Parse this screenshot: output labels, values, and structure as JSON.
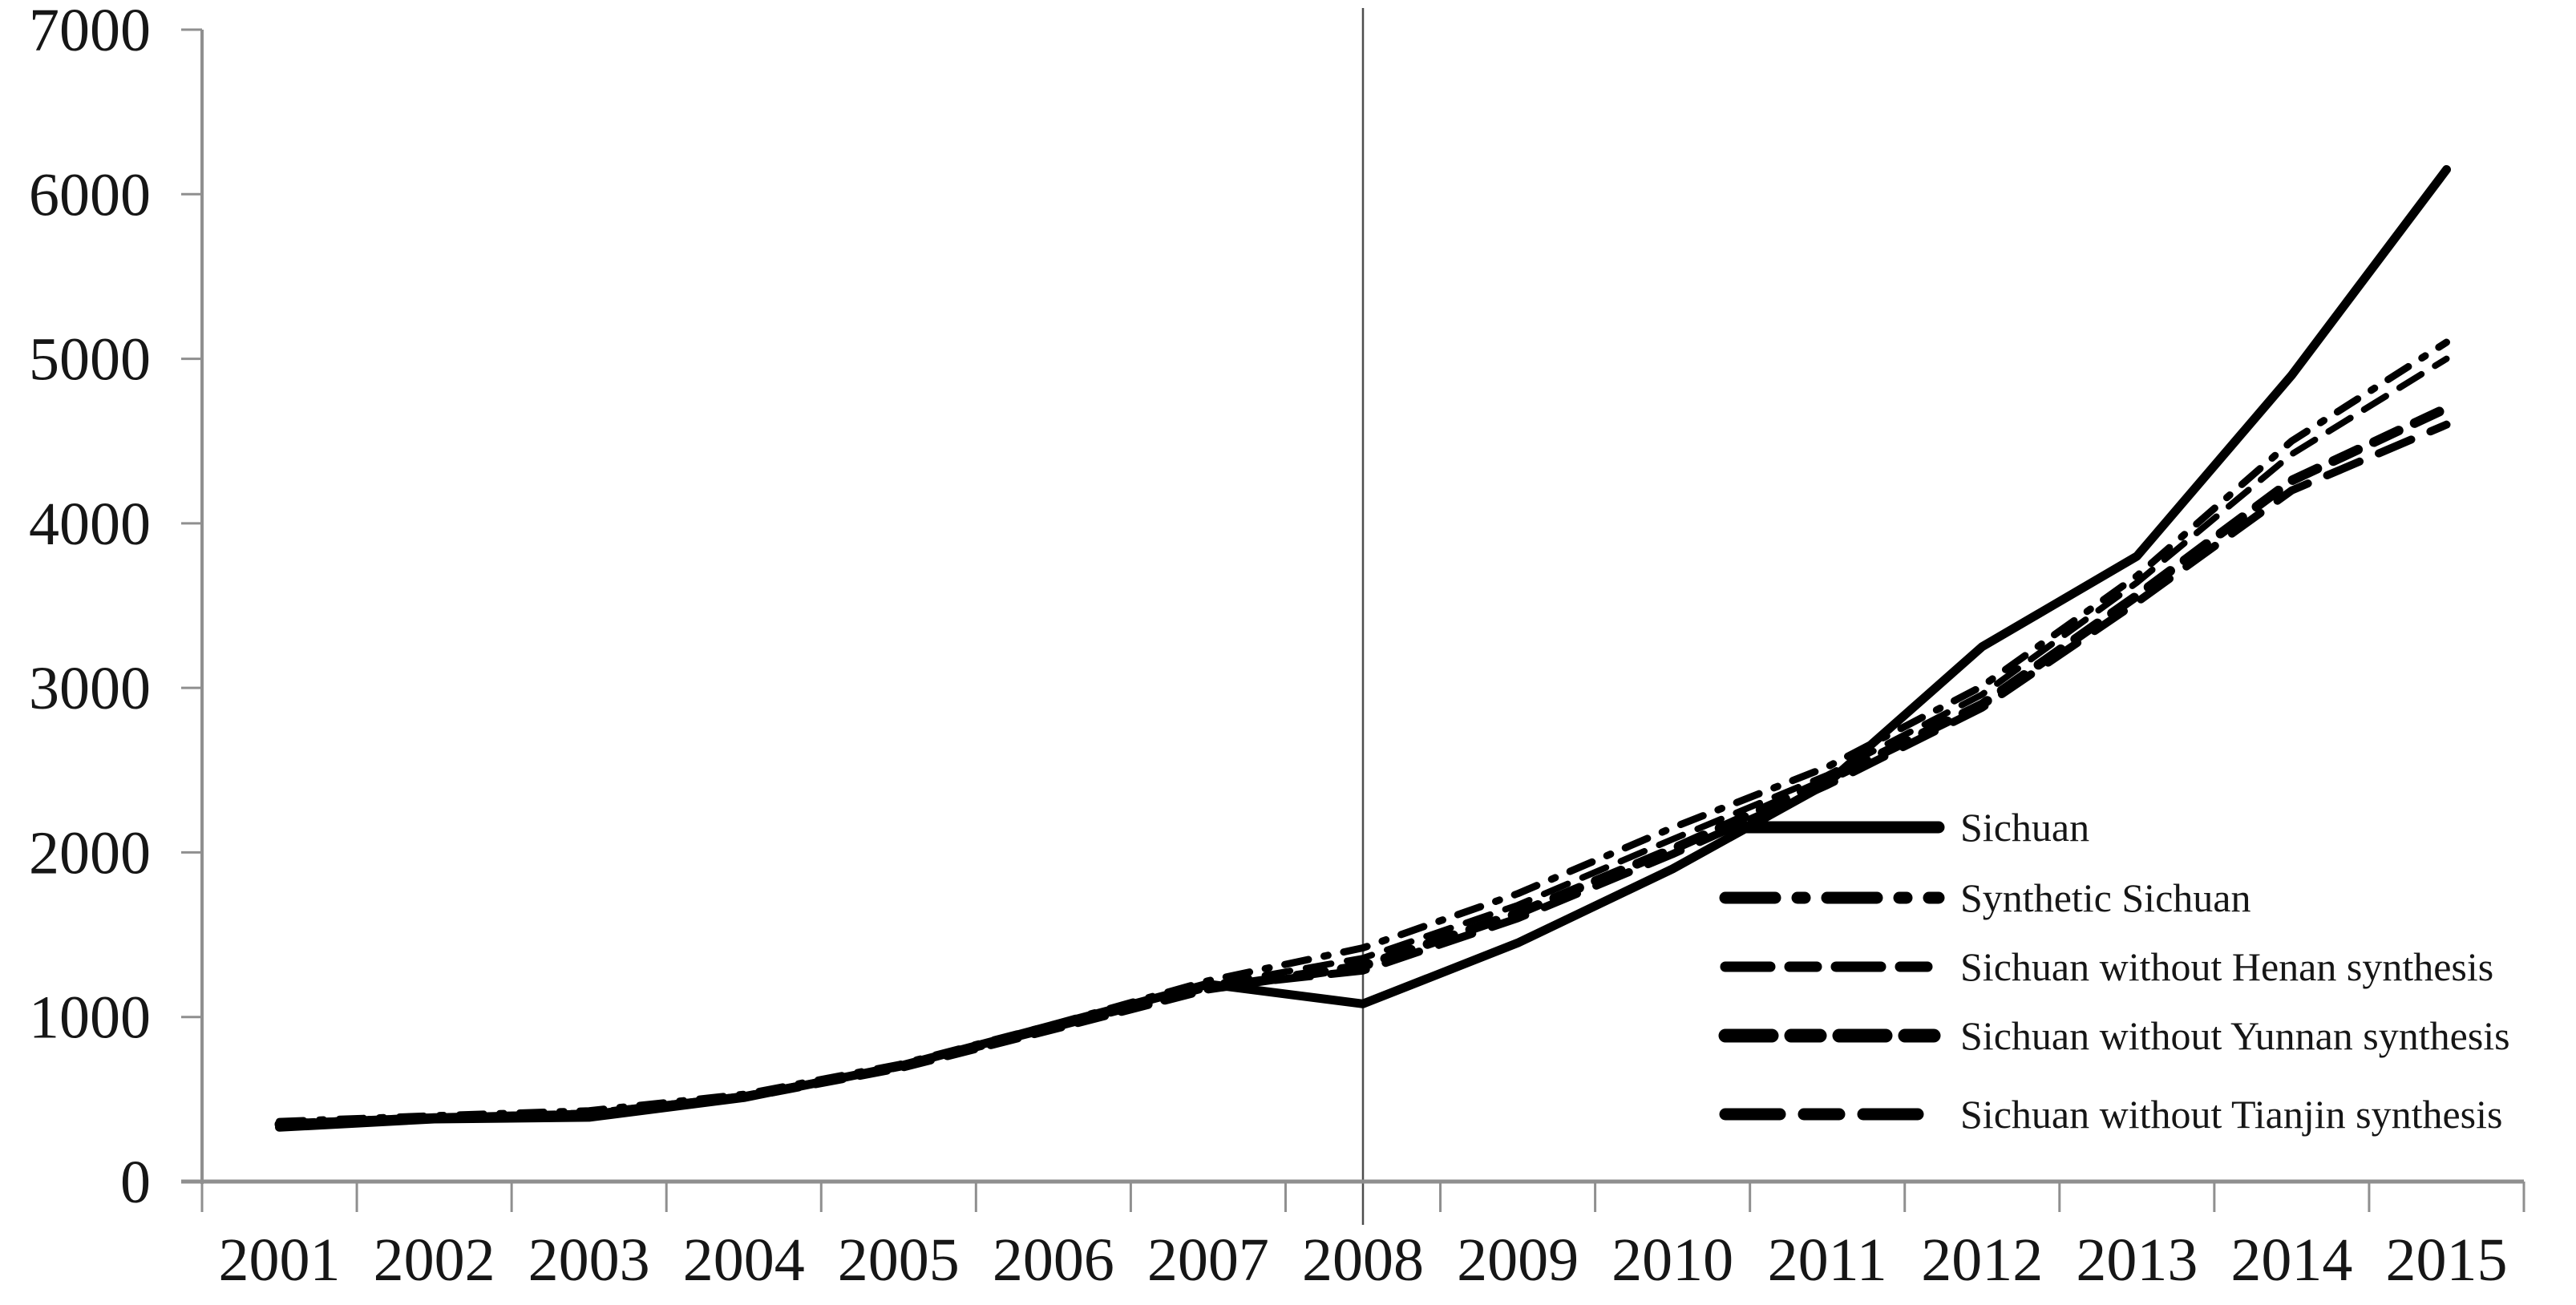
{
  "chart_data": {
    "type": "line",
    "title": "",
    "xlabel": "",
    "ylabel": "",
    "x": [
      2001,
      2002,
      2003,
      2004,
      2005,
      2006,
      2007,
      2008,
      2009,
      2010,
      2011,
      2012,
      2013,
      2014,
      2015
    ],
    "series": [
      {
        "name": "Sichuan",
        "style": "solid",
        "values": [
          330,
          380,
          390,
          510,
          700,
          950,
          1200,
          1080,
          1450,
          1900,
          2420,
          3250,
          3800,
          4900,
          6150
        ]
      },
      {
        "name": "Synthetic Sichuan",
        "style": "dash-dot",
        "values": [
          365,
          400,
          430,
          530,
          710,
          955,
          1220,
          1420,
          1750,
          2150,
          2520,
          3010,
          3680,
          4500,
          5100
        ]
      },
      {
        "name": "Sichuan without Henan synthesis",
        "style": "dashed",
        "values": [
          358,
          393,
          418,
          522,
          702,
          942,
          1192,
          1358,
          1680,
          2080,
          2470,
          2960,
          3640,
          4420,
          5000
        ]
      },
      {
        "name": "Sichuan without Yunnan synthesis",
        "style": "dashed-thick",
        "values": [
          348,
          386,
          404,
          514,
          692,
          930,
          1172,
          1310,
          1630,
          2020,
          2440,
          2900,
          3560,
          4260,
          4700
        ]
      },
      {
        "name": "Sichuan without Tianjin synthesis",
        "style": "dashed-long",
        "values": [
          352,
          390,
          412,
          518,
          696,
          936,
          1182,
          1282,
          1600,
          1990,
          2410,
          2880,
          3520,
          4200,
          4600
        ]
      }
    ],
    "ylim": [
      0,
      7000
    ],
    "yticks": [
      0,
      1000,
      2000,
      3000,
      4000,
      5000,
      6000,
      7000
    ],
    "vertical_reference_line_x": 2008,
    "grid": false,
    "legend_position": "inside-right-middle",
    "line_color": "#000000",
    "axis_color": "#8f8f8f",
    "reference_line_color": "#4d4d4d",
    "label_color": "#161616"
  }
}
